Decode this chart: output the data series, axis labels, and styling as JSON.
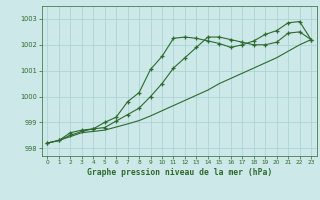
{
  "xlabel": "Graphe pression niveau de la mer (hPa)",
  "bg_color": "#cce8e8",
  "line_color": "#2d6a2d",
  "grid_color": "#a8d0d0",
  "xlim": [
    -0.5,
    23.5
  ],
  "ylim": [
    997.7,
    1003.5
  ],
  "xticks": [
    0,
    1,
    2,
    3,
    4,
    5,
    6,
    7,
    8,
    9,
    10,
    11,
    12,
    13,
    14,
    15,
    16,
    17,
    18,
    19,
    20,
    21,
    22,
    23
  ],
  "yticks": [
    998,
    999,
    1000,
    1001,
    1002,
    1003
  ],
  "series1_x": [
    0,
    1,
    2,
    3,
    4,
    5,
    6,
    7,
    8,
    9,
    10,
    11,
    12,
    13,
    14,
    15,
    16,
    17,
    18,
    19,
    20,
    21,
    22,
    23
  ],
  "series1_y": [
    998.2,
    998.3,
    998.6,
    998.7,
    998.75,
    999.0,
    999.2,
    999.8,
    1000.15,
    1001.05,
    1001.55,
    1002.25,
    1002.3,
    1002.25,
    1002.15,
    1002.05,
    1001.9,
    1002.0,
    1002.15,
    1002.4,
    1002.55,
    1002.85,
    1002.9,
    1002.2
  ],
  "series2_x": [
    0,
    1,
    2,
    3,
    4,
    5,
    6,
    7,
    8,
    9,
    10,
    11,
    12,
    13,
    14,
    15,
    16,
    17,
    18,
    19,
    20,
    21,
    22,
    23
  ],
  "series2_y": [
    998.2,
    998.3,
    998.5,
    998.65,
    998.75,
    998.8,
    999.05,
    999.3,
    999.55,
    1000.0,
    1000.5,
    1001.1,
    1001.5,
    1001.9,
    1002.3,
    1002.3,
    1002.2,
    1002.1,
    1002.0,
    1002.0,
    1002.1,
    1002.45,
    1002.5,
    1002.2
  ],
  "series3_x": [
    0,
    1,
    2,
    3,
    4,
    5,
    6,
    7,
    8,
    9,
    10,
    11,
    12,
    13,
    14,
    15,
    16,
    17,
    18,
    19,
    20,
    21,
    22,
    23
  ],
  "series3_y": [
    998.2,
    998.3,
    998.45,
    998.6,
    998.65,
    998.7,
    998.82,
    998.94,
    999.07,
    999.25,
    999.45,
    999.65,
    999.85,
    1000.05,
    1000.25,
    1000.5,
    1000.7,
    1000.9,
    1001.1,
    1001.3,
    1001.5,
    1001.75,
    1002.0,
    1002.2
  ]
}
